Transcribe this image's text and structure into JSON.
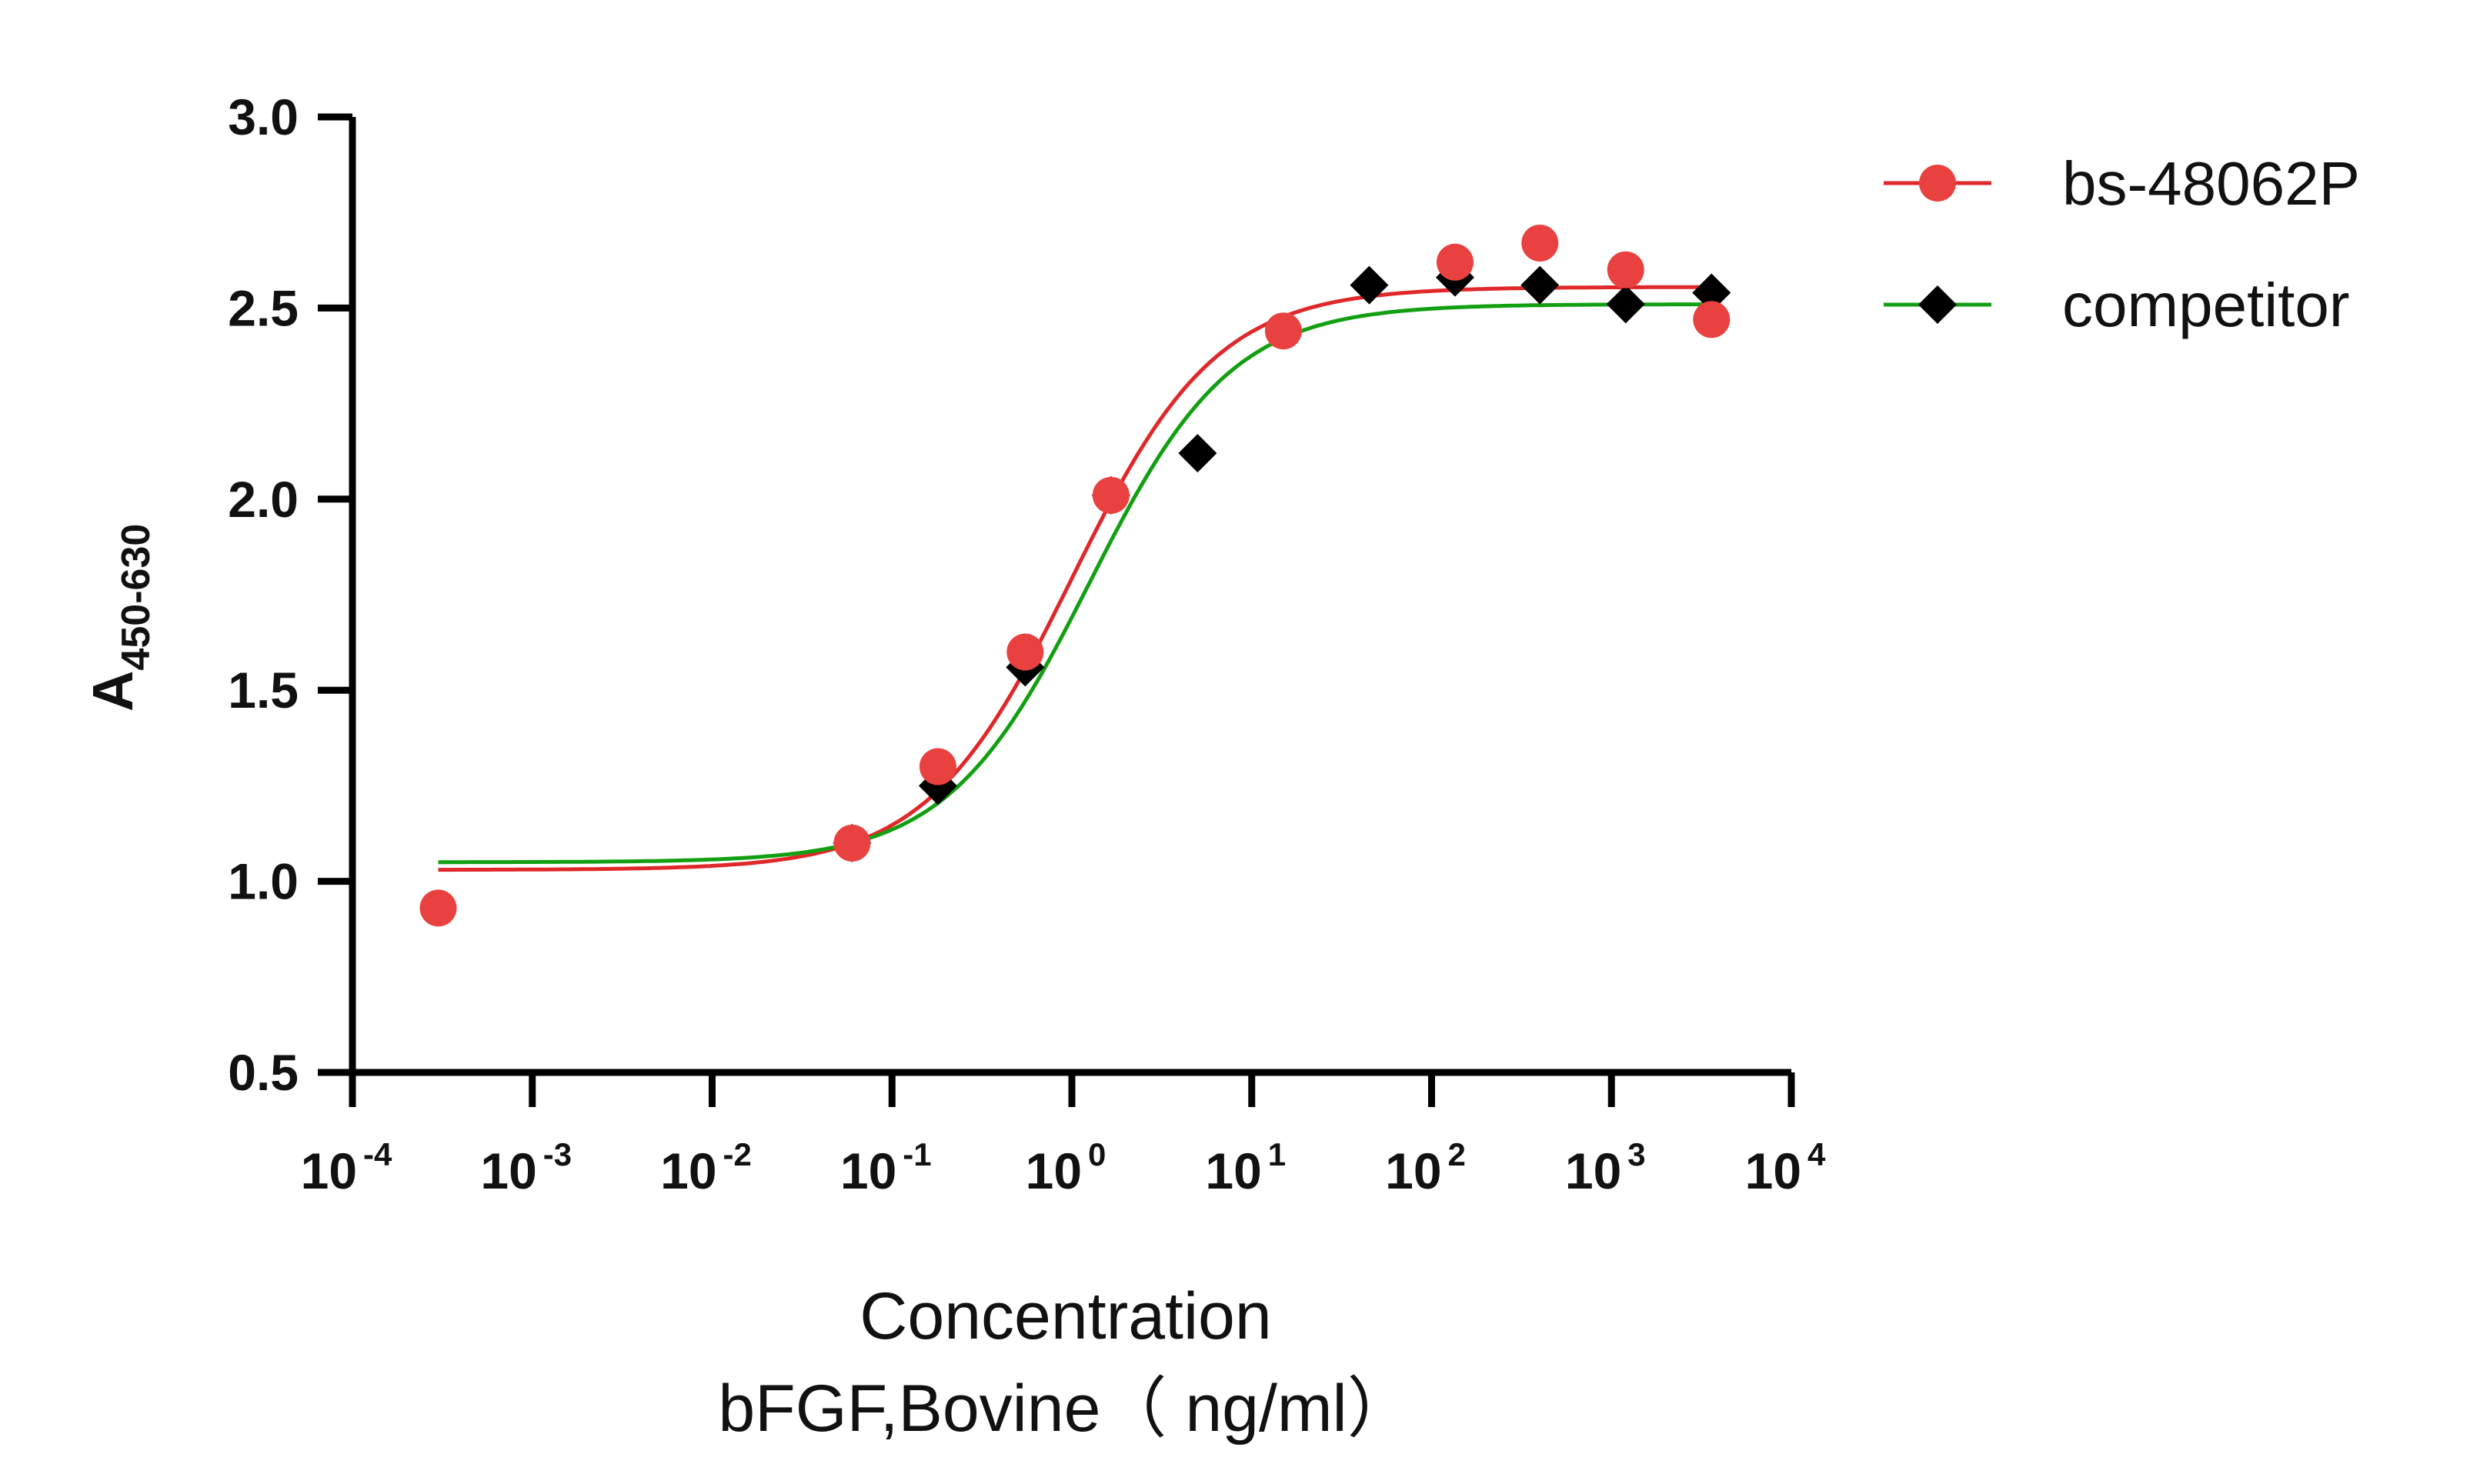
{
  "chart_data": {
    "type": "scatter",
    "xlabel_line1": "Concentration",
    "xlabel_line2": "bFGF,Bovine（ ng/ml）",
    "ylabel_main": "A",
    "ylabel_sub": "450-630",
    "xscale": "log",
    "xlim": [
      0.0001,
      10000
    ],
    "ylim": [
      0.5,
      3.0
    ],
    "x_ticks": [
      {
        "base": "10",
        "exp": "-4",
        "value": 0.0001
      },
      {
        "base": "10",
        "exp": "-3",
        "value": 0.001
      },
      {
        "base": "10",
        "exp": "-2",
        "value": 0.01
      },
      {
        "base": "10",
        "exp": "-1",
        "value": 0.1
      },
      {
        "base": "10",
        "exp": "0",
        "value": 1
      },
      {
        "base": "10",
        "exp": "1",
        "value": 10
      },
      {
        "base": "10",
        "exp": "2",
        "value": 100
      },
      {
        "base": "10",
        "exp": "3",
        "value": 1000
      },
      {
        "base": "10",
        "exp": "4",
        "value": 10000
      }
    ],
    "y_ticks": [
      "0.5",
      "1.0",
      "1.5",
      "2.0",
      "2.5",
      "3.0"
    ],
    "grid": false,
    "legend_position": "top-right",
    "series": [
      {
        "name": "bs-48062P",
        "marker": "circle",
        "color": "#e8413f",
        "line_color": "#e0282a",
        "points": [
          {
            "x": 0.0003,
            "y": 0.93
          },
          {
            "x": 0.06,
            "y": 1.1
          },
          {
            "x": 0.18,
            "y": 1.3
          },
          {
            "x": 0.55,
            "y": 1.6
          },
          {
            "x": 1.65,
            "y": 2.01
          },
          {
            "x": 15,
            "y": 2.44
          },
          {
            "x": 135,
            "y": 2.62
          },
          {
            "x": 400,
            "y": 2.67
          },
          {
            "x": 1200,
            "y": 2.6
          },
          {
            "x": 3600,
            "y": 2.47
          }
        ],
        "fit": {
          "bottom": 1.03,
          "top": 2.555,
          "ec50": 1.0,
          "hill": 1.08
        }
      },
      {
        "name": "competitor",
        "marker": "diamond",
        "color": "#000000",
        "line_color": "#12a012",
        "points": [
          {
            "x": 0.06,
            "y": 1.1
          },
          {
            "x": 0.18,
            "y": 1.25
          },
          {
            "x": 0.55,
            "y": 1.56
          },
          {
            "x": 1.65,
            "y": 2.01
          },
          {
            "x": 5,
            "y": 2.12
          },
          {
            "x": 45,
            "y": 2.56
          },
          {
            "x": 135,
            "y": 2.58
          },
          {
            "x": 400,
            "y": 2.56
          },
          {
            "x": 1200,
            "y": 2.51
          },
          {
            "x": 3600,
            "y": 2.54
          }
        ],
        "fit": {
          "bottom": 1.05,
          "top": 2.51,
          "ec50": 1.25,
          "hill": 1.1
        }
      }
    ]
  }
}
